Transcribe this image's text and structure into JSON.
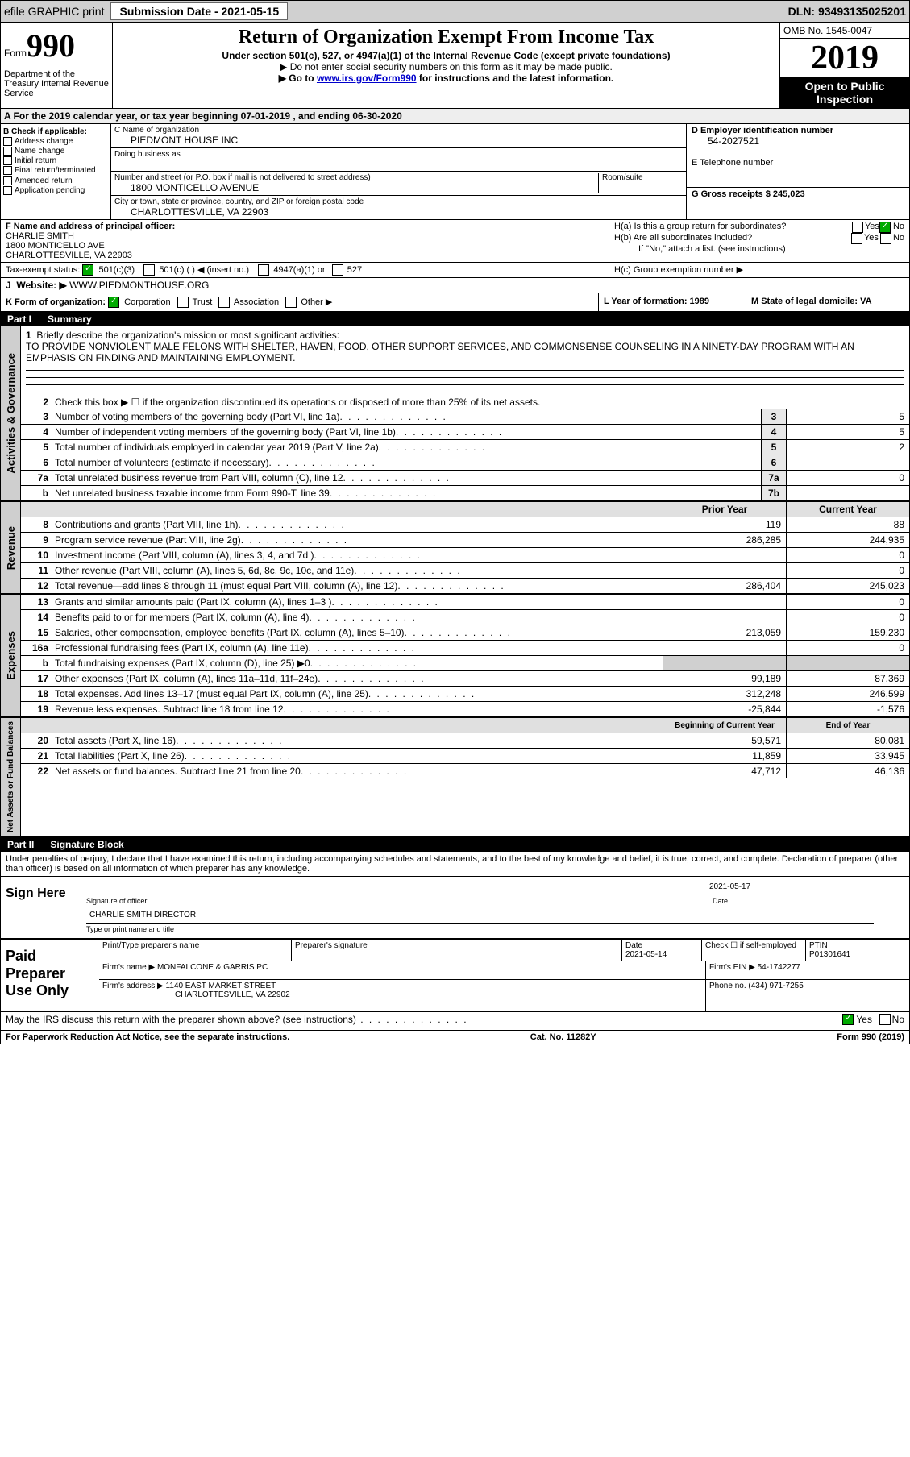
{
  "topbar": {
    "efile": "efile GRAPHIC print",
    "submission_label": "Submission Date - 2021-05-15",
    "dln": "DLN: 93493135025201"
  },
  "header": {
    "form_prefix": "Form",
    "form_number": "990",
    "dept": "Department of the Treasury\nInternal Revenue Service",
    "title": "Return of Organization Exempt From Income Tax",
    "subtitle": "Under section 501(c), 527, or 4947(a)(1) of the Internal Revenue Code (except private foundations)",
    "inst1": "▶ Do not enter social security numbers on this form as it may be made public.",
    "inst2_pre": "▶ Go to ",
    "inst2_link": "www.irs.gov/Form990",
    "inst2_post": " for instructions and the latest information.",
    "omb": "OMB No. 1545-0047",
    "year": "2019",
    "inspection1": "Open to Public",
    "inspection2": "Inspection"
  },
  "row_a": "A For the 2019 calendar year, or tax year beginning 07-01-2019   , and ending 06-30-2020",
  "section_b": {
    "label": "B Check if applicable:",
    "opts": [
      "Address change",
      "Name change",
      "Initial return",
      "Final return/terminated",
      "Amended return",
      "Application pending"
    ]
  },
  "section_c": {
    "name_label": "C Name of organization",
    "name": "PIEDMONT HOUSE INC",
    "dba_label": "Doing business as",
    "addr_label": "Number and street (or P.O. box if mail is not delivered to street address)",
    "room_label": "Room/suite",
    "addr": "1800 MONTICELLO AVENUE",
    "city_label": "City or town, state or province, country, and ZIP or foreign postal code",
    "city": "CHARLOTTESVILLE, VA  22903"
  },
  "section_d": {
    "label": "D Employer identification number",
    "value": "54-2027521"
  },
  "section_e": {
    "label": "E Telephone number",
    "value": ""
  },
  "section_g": {
    "label": "G Gross receipts $ 245,023"
  },
  "section_f": {
    "label": "F  Name and address of principal officer:",
    "name": "CHARLIE SMITH",
    "addr1": "1800 MONTICELLO AVE",
    "addr2": "CHARLOTTESVILLE, VA  22903"
  },
  "section_h": {
    "ha": "H(a)  Is this a group return for subordinates?",
    "hb": "H(b)  Are all subordinates included?",
    "hb_note": "If \"No,\" attach a list. (see instructions)",
    "hc": "H(c)  Group exemption number ▶",
    "yes": "Yes",
    "no": "No"
  },
  "section_i": {
    "label": "Tax-exempt status:",
    "opt1": "501(c)(3)",
    "opt2": "501(c) (  ) ◀ (insert no.)",
    "opt3": "4947(a)(1) or",
    "opt4": "527"
  },
  "section_j": {
    "label": "J",
    "website_label": "Website: ▶",
    "website": "WWW.PIEDMONTHOUSE.ORG"
  },
  "section_k": {
    "label": "K Form of organization:",
    "opts": [
      "Corporation",
      "Trust",
      "Association",
      "Other ▶"
    ]
  },
  "section_l": {
    "label": "L Year of formation: 1989"
  },
  "section_m": {
    "label": "M State of legal domicile: VA"
  },
  "part1": {
    "bar_num": "Part I",
    "bar_title": "Summary",
    "line1_label": "1",
    "line1_text": "Briefly describe the organization's mission or most significant activities:",
    "mission": "TO PROVIDE NONVIOLENT MALE FELONS WITH SHELTER, HAVEN, FOOD, OTHER SUPPORT SERVICES, AND COMMONSENSE COUNSELING IN A NINETY-DAY PROGRAM WITH AN EMPHASIS ON FINDING AND MAINTAINING EMPLOYMENT.",
    "line2": "Check this box ▶ ☐  if the organization discontinued its operations or disposed of more than 25% of its net assets.",
    "lines_ag": [
      {
        "n": "3",
        "t": "Number of voting members of the governing body (Part VI, line 1a)",
        "box": "3",
        "v": "5"
      },
      {
        "n": "4",
        "t": "Number of independent voting members of the governing body (Part VI, line 1b)",
        "box": "4",
        "v": "5"
      },
      {
        "n": "5",
        "t": "Total number of individuals employed in calendar year 2019 (Part V, line 2a)",
        "box": "5",
        "v": "2"
      },
      {
        "n": "6",
        "t": "Total number of volunteers (estimate if necessary)",
        "box": "6",
        "v": ""
      },
      {
        "n": "7a",
        "t": "Total unrelated business revenue from Part VIII, column (C), line 12",
        "box": "7a",
        "v": "0"
      },
      {
        "n": "b",
        "t": "Net unrelated business taxable income from Form 990-T, line 39",
        "box": "7b",
        "v": ""
      }
    ],
    "col_prior": "Prior Year",
    "col_current": "Current Year",
    "revenue": [
      {
        "n": "8",
        "t": "Contributions and grants (Part VIII, line 1h)",
        "p": "119",
        "c": "88"
      },
      {
        "n": "9",
        "t": "Program service revenue (Part VIII, line 2g)",
        "p": "286,285",
        "c": "244,935"
      },
      {
        "n": "10",
        "t": "Investment income (Part VIII, column (A), lines 3, 4, and 7d )",
        "p": "",
        "c": "0"
      },
      {
        "n": "11",
        "t": "Other revenue (Part VIII, column (A), lines 5, 6d, 8c, 9c, 10c, and 11e)",
        "p": "",
        "c": "0"
      },
      {
        "n": "12",
        "t": "Total revenue—add lines 8 through 11 (must equal Part VIII, column (A), line 12)",
        "p": "286,404",
        "c": "245,023"
      }
    ],
    "expenses": [
      {
        "n": "13",
        "t": "Grants and similar amounts paid (Part IX, column (A), lines 1–3 )",
        "p": "",
        "c": "0"
      },
      {
        "n": "14",
        "t": "Benefits paid to or for members (Part IX, column (A), line 4)",
        "p": "",
        "c": "0"
      },
      {
        "n": "15",
        "t": "Salaries, other compensation, employee benefits (Part IX, column (A), lines 5–10)",
        "p": "213,059",
        "c": "159,230"
      },
      {
        "n": "16a",
        "t": "Professional fundraising fees (Part IX, column (A), line 11e)",
        "p": "",
        "c": "0"
      },
      {
        "n": "b",
        "t": "Total fundraising expenses (Part IX, column (D), line 25) ▶0",
        "p": "SHADE",
        "c": "SHADE"
      },
      {
        "n": "17",
        "t": "Other expenses (Part IX, column (A), lines 11a–11d, 11f–24e)",
        "p": "99,189",
        "c": "87,369"
      },
      {
        "n": "18",
        "t": "Total expenses. Add lines 13–17 (must equal Part IX, column (A), line 25)",
        "p": "312,248",
        "c": "246,599"
      },
      {
        "n": "19",
        "t": "Revenue less expenses. Subtract line 18 from line 12",
        "p": "-25,844",
        "c": "-1,576"
      }
    ],
    "col_begin": "Beginning of Current Year",
    "col_end": "End of Year",
    "netassets": [
      {
        "n": "20",
        "t": "Total assets (Part X, line 16)",
        "p": "59,571",
        "c": "80,081"
      },
      {
        "n": "21",
        "t": "Total liabilities (Part X, line 26)",
        "p": "11,859",
        "c": "33,945"
      },
      {
        "n": "22",
        "t": "Net assets or fund balances. Subtract line 21 from line 20",
        "p": "47,712",
        "c": "46,136"
      }
    ]
  },
  "sections": {
    "ag": "Activities & Governance",
    "rev": "Revenue",
    "exp": "Expenses",
    "na": "Net Assets or\nFund Balances"
  },
  "part2": {
    "bar_num": "Part II",
    "bar_title": "Signature Block",
    "decl": "Under penalties of perjury, I declare that I have examined this return, including accompanying schedules and statements, and to the best of my knowledge and belief, it is true, correct, and complete. Declaration of preparer (other than officer) is based on all information of which preparer has any knowledge.",
    "sign_here": "Sign Here",
    "sig_officer": "Signature of officer",
    "sig_date": "2021-05-17",
    "date_label": "Date",
    "officer_name": "CHARLIE SMITH  DIRECTOR",
    "type_label": "Type or print name and title",
    "paid": "Paid Preparer Use Only",
    "prep_name_label": "Print/Type preparer's name",
    "prep_sig_label": "Preparer's signature",
    "prep_date_label": "Date",
    "prep_date": "2021-05-14",
    "check_self": "Check ☐ if self-employed",
    "ptin_label": "PTIN",
    "ptin": "P01301641",
    "firm_name_label": "Firm's name     ▶",
    "firm_name": "MONFALCONE & GARRIS PC",
    "firm_ein_label": "Firm's EIN ▶",
    "firm_ein": "54-1742277",
    "firm_addr_label": "Firm's address ▶",
    "firm_addr1": "1140 EAST MARKET STREET",
    "firm_addr2": "CHARLOTTESVILLE, VA  22902",
    "phone_label": "Phone no.",
    "phone": "(434) 971-7255",
    "discuss": "May the IRS discuss this return with the preparer shown above? (see instructions)",
    "yes": "Yes",
    "no": "No"
  },
  "footer": {
    "left": "For Paperwork Reduction Act Notice, see the separate instructions.",
    "mid": "Cat. No. 11282Y",
    "right": "Form 990 (2019)"
  }
}
